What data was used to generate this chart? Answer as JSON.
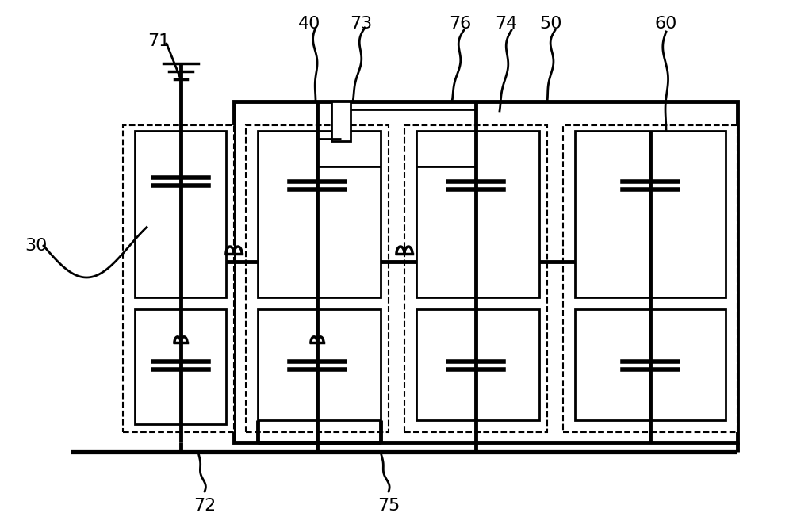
{
  "bg_color": "#ffffff",
  "lc": "#000000",
  "lw": 2.0,
  "tlw": 3.5,
  "dlw": 1.5,
  "fs": 16,
  "figw": 10.0,
  "figh": 6.71
}
